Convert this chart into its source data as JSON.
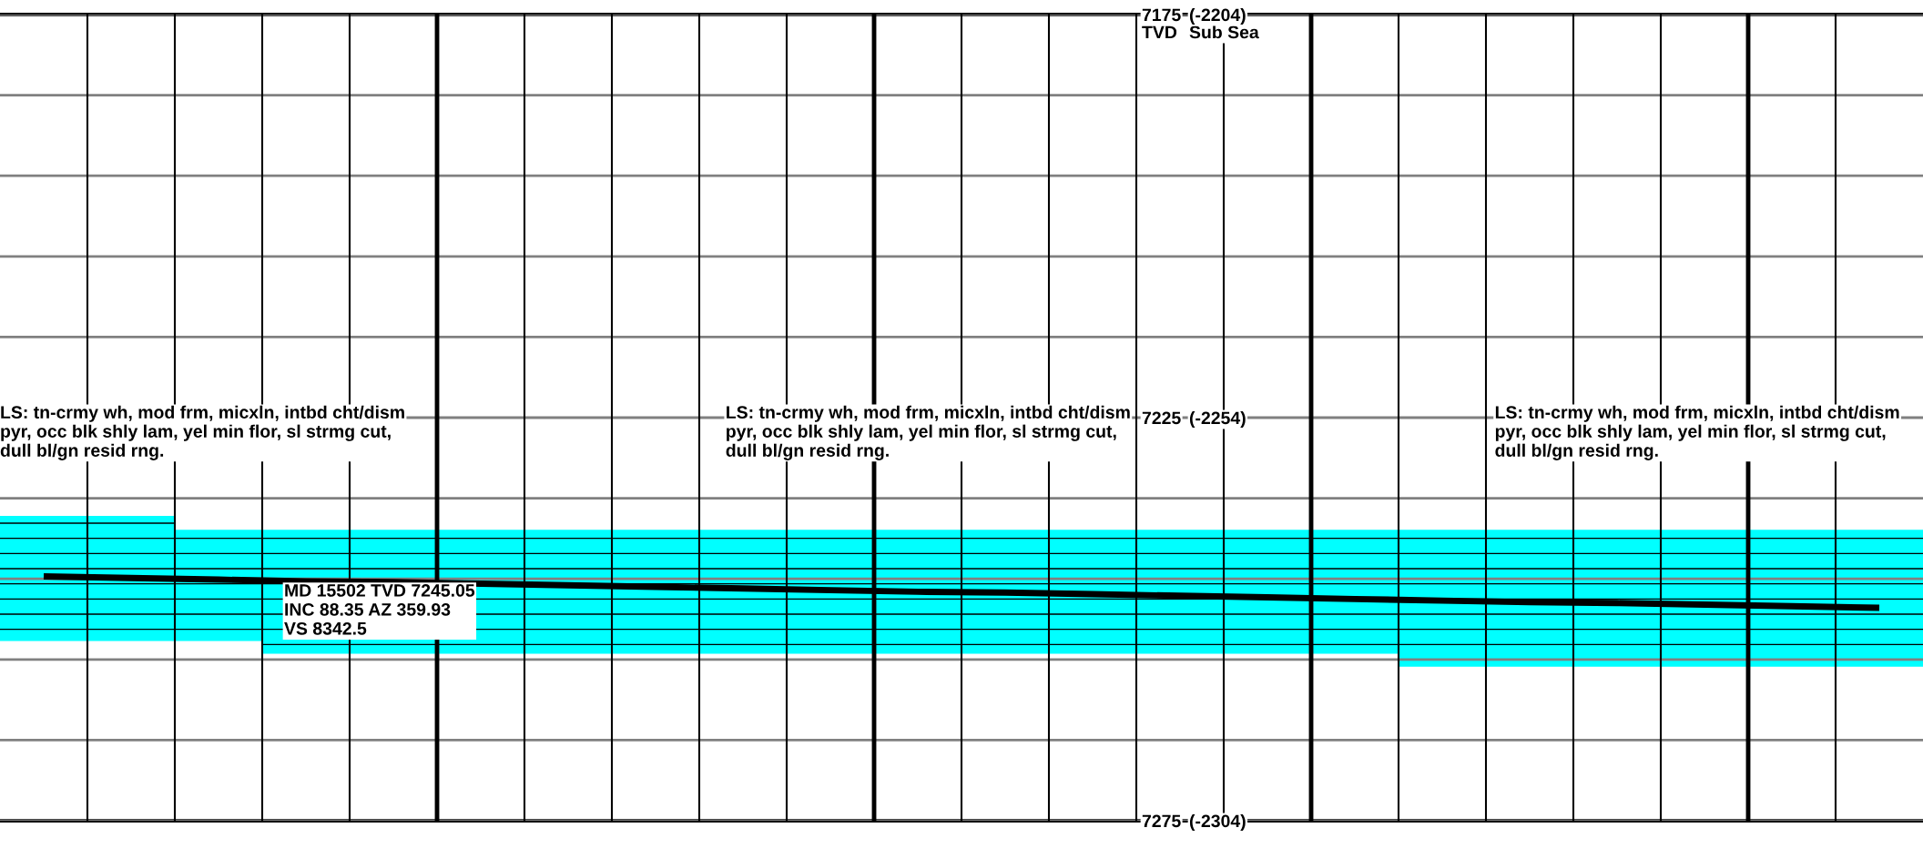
{
  "chart_data": {
    "type": "bar",
    "categories": [
      null,
      null,
      null,
      null,
      null,
      null,
      null,
      null,
      null,
      null,
      null,
      null,
      null,
      null,
      null,
      null,
      null,
      null,
      null,
      null,
      null,
      null
    ],
    "series": [
      {
        "color": "#00ffff",
        "base": [
          7237.2,
          7237.2,
          7238.9,
          7238.9,
          7238.9,
          7238.9,
          7238.9,
          7238.9,
          7238.9,
          7238.9,
          7238.9,
          7238.9,
          7238.9,
          7238.9,
          7238.9,
          7238.9,
          7238.9,
          7238.9,
          7238.9,
          7238.9,
          7238.9,
          7238.9
        ],
        "values": [
          15.5,
          15.5,
          13.8,
          15.4,
          15.4,
          15.4,
          15.4,
          15.4,
          15.4,
          15.4,
          15.4,
          15.4,
          15.4,
          15.4,
          15.4,
          15.4,
          17.0,
          17.0,
          17.0,
          17.0,
          17.0,
          17.0
        ]
      },
      {
        "type": "line",
        "color": "#000000",
        "values": [
          7244.7,
          7244.9,
          7245.1,
          7245.3,
          7245.4,
          7245.6,
          7245.8,
          7246.0,
          7246.2,
          7246.4,
          7246.6,
          7246.7,
          7246.9,
          7247.1,
          7247.3,
          7247.5,
          7247.7,
          7247.9,
          7248.0,
          7248.2,
          7248.4,
          7248.6
        ]
      }
    ],
    "ylim": [
      7275,
      7175
    ],
    "yticks": [
      7175,
      {
        "value": 7185,
        "label": null
      },
      {
        "value": 7195,
        "label": null
      },
      {
        "value": 7205,
        "label": null
      },
      {
        "value": 7215,
        "label": null
      },
      7225,
      {
        "value": 7235,
        "label": null
      },
      {
        "value": 7245,
        "label": null
      },
      {
        "value": 7255,
        "label": null
      },
      {
        "value": 7265,
        "label": null
      },
      7275
    ],
    "y2lim": [
      -2304,
      -2204
    ],
    "y2ticks": [
      {
        "value": -2204,
        "label": "(-2204)"
      },
      {
        "value": -2254,
        "label": "(-2254)"
      },
      {
        "value": -2304,
        "label": "(-2304)"
      }
    ],
    "annotations": [
      "LS: tn-crmy wh, mod frm, micxln, intbd cht/dism\npyr, occ blk shly lam, yel min flor, sl strmg cut,\ndull bl/gn resid rng.",
      "MD 15502 TVD 7245.05\nINC 88.35 AZ 359.93\nVS 8342.5",
      "TVD",
      "Sub Sea",
      "LS: tn-crmy wh, mod frm, micxln, intbd cht/dism\npyr, occ blk shly lam, yel min flor, sl strmg cut,\ndull bl/gn resid rng.",
      "LS: tn-crmy wh, mod frm, micxln, intbd cht/dism\npyr, occ blk shly lam, yel min flor, sl strmg cut,\ndull bl/gn resid rng."
    ],
    "grid": true,
    "tick_labels": "y",
    "legend": false,
    "line_style": "solid",
    "marker": "none"
  }
}
